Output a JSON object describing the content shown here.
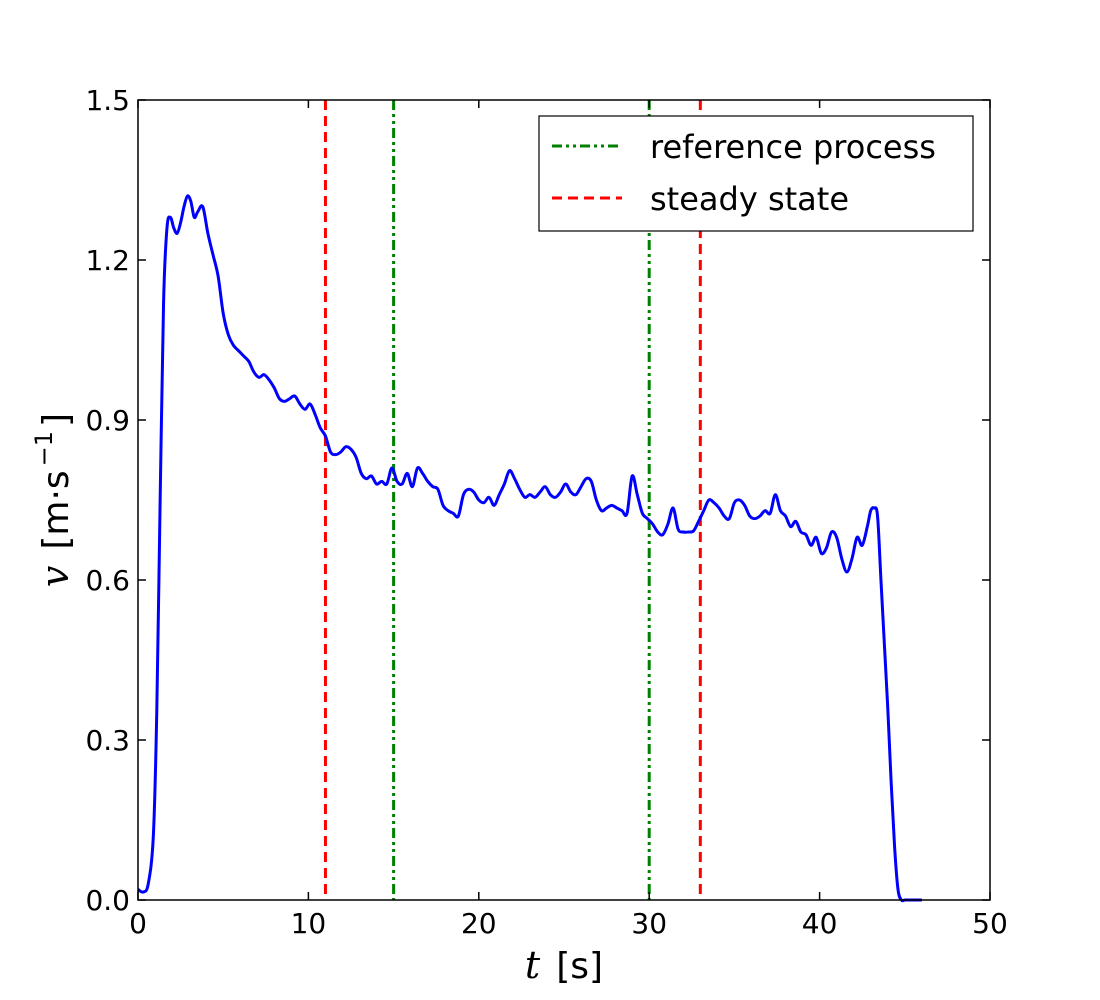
{
  "chart_data": {
    "type": "line",
    "title": "",
    "xlabel": {
      "var": "t",
      "unit": "[s]"
    },
    "ylabel": {
      "var": "v",
      "unit_open": "[m·s",
      "unit_exp": "−1",
      "unit_close": "]"
    },
    "xlim": [
      0,
      50
    ],
    "ylim": [
      0,
      1.5
    ],
    "xticks": [
      0,
      10,
      20,
      30,
      40,
      50
    ],
    "xtick_labels": [
      "0",
      "10",
      "20",
      "30",
      "40",
      "50"
    ],
    "yticks": [
      0,
      0.3,
      0.6,
      0.9,
      1.2,
      1.5
    ],
    "ytick_labels": [
      "0.0",
      "0.3",
      "0.6",
      "0.9",
      "1.2",
      "1.5"
    ],
    "grid": false,
    "legend_position": "top-right",
    "series": [
      {
        "name": "v",
        "color": "#0000ff",
        "x": [
          0,
          0.3,
          0.6,
          0.9,
          1.1,
          1.3,
          1.5,
          1.7,
          1.9,
          2.1,
          2.3,
          2.5,
          2.7,
          2.9,
          3.1,
          3.3,
          3.5,
          3.8,
          4.1,
          4.4,
          4.7,
          5.0,
          5.3,
          5.6,
          5.9,
          6.2,
          6.5,
          6.8,
          7.1,
          7.4,
          7.7,
          8.0,
          8.3,
          8.6,
          8.9,
          9.2,
          9.5,
          9.8,
          10.1,
          10.4,
          10.7,
          11.0,
          11.3,
          11.6,
          11.9,
          12.2,
          12.5,
          12.8,
          13.1,
          13.4,
          13.7,
          14.0,
          14.3,
          14.6,
          14.9,
          15.2,
          15.5,
          15.8,
          16.1,
          16.4,
          16.7,
          17.0,
          17.3,
          17.6,
          17.9,
          18.2,
          18.5,
          18.8,
          19.1,
          19.4,
          19.7,
          20.0,
          20.3,
          20.6,
          20.9,
          21.2,
          21.5,
          21.8,
          22.1,
          22.4,
          22.7,
          23.0,
          23.3,
          23.6,
          23.9,
          24.2,
          24.5,
          24.8,
          25.1,
          25.4,
          25.7,
          26.0,
          26.3,
          26.6,
          26.9,
          27.2,
          27.5,
          27.8,
          28.1,
          28.4,
          28.7,
          29.0,
          29.3,
          29.6,
          29.9,
          30.2,
          30.5,
          30.8,
          31.1,
          31.4,
          31.7,
          32.0,
          32.3,
          32.6,
          32.9,
          33.2,
          33.5,
          33.8,
          34.1,
          34.4,
          34.7,
          35.0,
          35.3,
          35.6,
          35.9,
          36.2,
          36.5,
          36.8,
          37.1,
          37.4,
          37.7,
          38.0,
          38.3,
          38.6,
          38.9,
          39.2,
          39.5,
          39.8,
          40.1,
          40.4,
          40.7,
          41.0,
          41.3,
          41.6,
          41.9,
          42.2,
          42.5,
          42.8,
          43.0,
          43.2,
          43.4,
          43.6,
          43.8,
          44.0,
          44.2,
          44.4,
          44.6,
          44.8,
          45.0,
          45.2,
          45.5,
          46.0
        ],
        "y": [
          0.02,
          0.015,
          0.03,
          0.12,
          0.35,
          0.75,
          1.12,
          1.26,
          1.28,
          1.26,
          1.25,
          1.27,
          1.3,
          1.32,
          1.31,
          1.28,
          1.29,
          1.3,
          1.25,
          1.21,
          1.17,
          1.1,
          1.06,
          1.04,
          1.03,
          1.02,
          1.01,
          0.99,
          0.98,
          0.985,
          0.975,
          0.96,
          0.94,
          0.935,
          0.94,
          0.945,
          0.93,
          0.92,
          0.93,
          0.91,
          0.885,
          0.87,
          0.84,
          0.835,
          0.84,
          0.85,
          0.845,
          0.83,
          0.8,
          0.79,
          0.795,
          0.78,
          0.785,
          0.78,
          0.81,
          0.785,
          0.78,
          0.8,
          0.775,
          0.81,
          0.8,
          0.785,
          0.775,
          0.77,
          0.74,
          0.73,
          0.725,
          0.72,
          0.76,
          0.77,
          0.765,
          0.75,
          0.745,
          0.755,
          0.74,
          0.76,
          0.78,
          0.805,
          0.79,
          0.77,
          0.755,
          0.76,
          0.755,
          0.765,
          0.775,
          0.76,
          0.755,
          0.765,
          0.78,
          0.765,
          0.76,
          0.775,
          0.79,
          0.785,
          0.75,
          0.73,
          0.735,
          0.74,
          0.735,
          0.73,
          0.725,
          0.795,
          0.76,
          0.725,
          0.715,
          0.705,
          0.69,
          0.685,
          0.705,
          0.735,
          0.695,
          0.69,
          0.69,
          0.692,
          0.71,
          0.73,
          0.75,
          0.745,
          0.735,
          0.72,
          0.715,
          0.745,
          0.75,
          0.74,
          0.72,
          0.715,
          0.72,
          0.73,
          0.725,
          0.76,
          0.73,
          0.72,
          0.7,
          0.71,
          0.69,
          0.685,
          0.665,
          0.68,
          0.65,
          0.66,
          0.69,
          0.68,
          0.64,
          0.615,
          0.64,
          0.68,
          0.665,
          0.7,
          0.73,
          0.735,
          0.72,
          0.6,
          0.48,
          0.36,
          0.22,
          0.1,
          0.02,
          0.0,
          0.0,
          0.0,
          0.0,
          0.0
        ]
      },
      {
        "name": "reference process",
        "color": "#008000",
        "style": "dash-dot",
        "x_positions": [
          15,
          30
        ]
      },
      {
        "name": "steady state",
        "color": "#ff0000",
        "style": "dashed",
        "x_positions": [
          11,
          33
        ]
      }
    ],
    "legend": [
      {
        "label": "reference process",
        "color": "#008000",
        "style": "dash-dot"
      },
      {
        "label": "steady state",
        "color": "#ff0000",
        "style": "dashed"
      }
    ]
  }
}
